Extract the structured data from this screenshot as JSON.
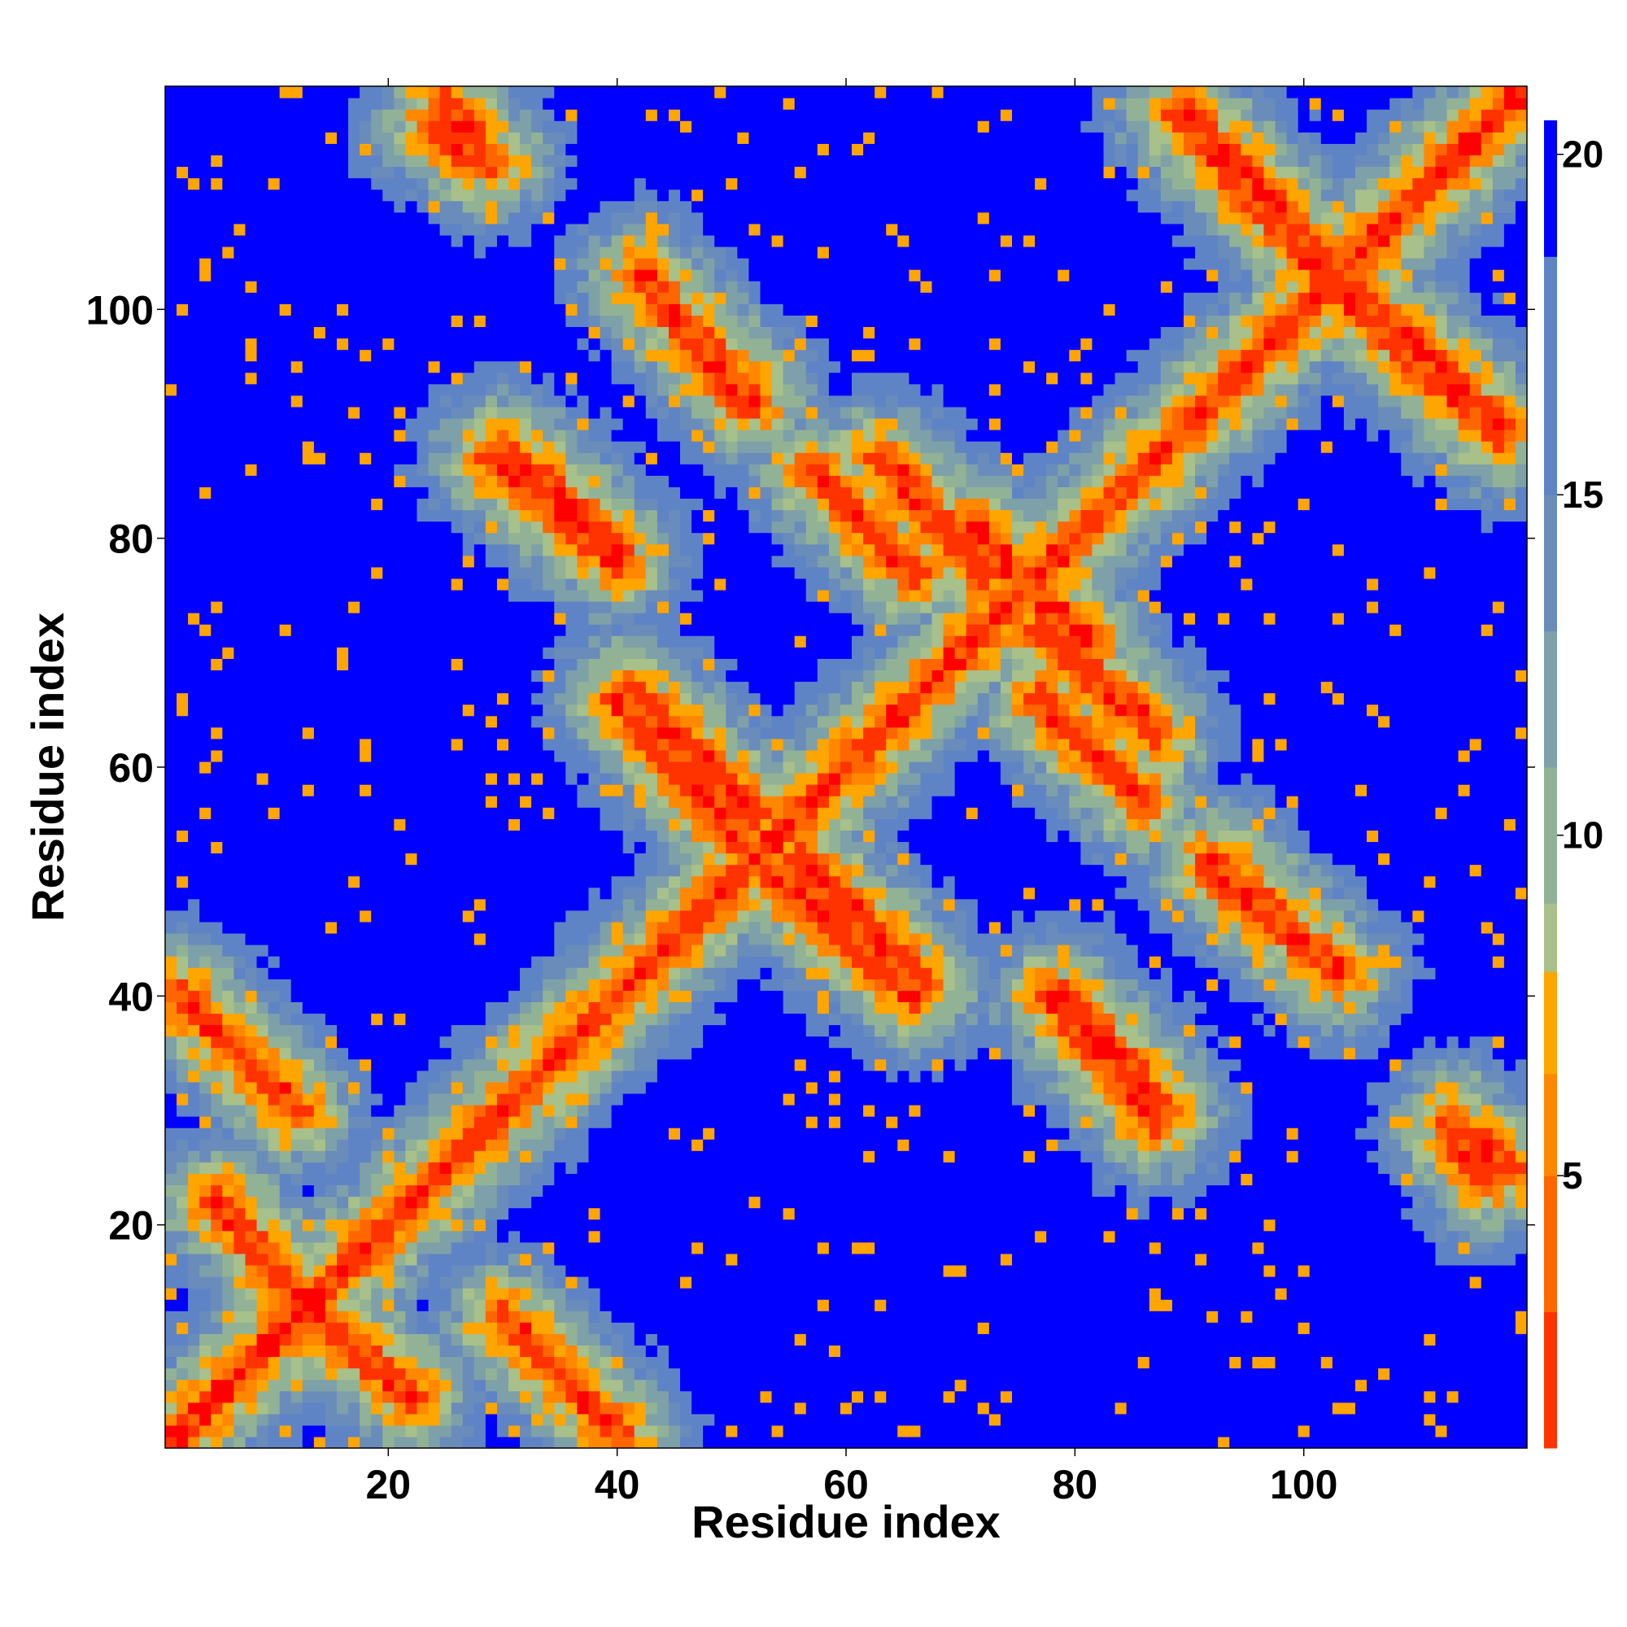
{
  "chart_data": {
    "type": "heatmap",
    "title": "",
    "xlabel": "Residue index",
    "ylabel": "Residue index",
    "n_residues": 119,
    "xlim": [
      1,
      119
    ],
    "ylim": [
      1,
      119
    ],
    "x_ticks": [
      20,
      40,
      60,
      80,
      100
    ],
    "y_ticks": [
      20,
      40,
      60,
      80,
      100
    ],
    "colorbar": {
      "ticks": [
        5,
        10,
        15,
        20
      ],
      "range": [
        1,
        21
      ],
      "colors": [
        "#ff0000",
        "#ff3300",
        "#ff6600",
        "#ff8800",
        "#ffa500",
        "#a8c08a",
        "#92b296",
        "#7ea0a8",
        "#6a8cbb",
        "#5f84c5",
        "#0000ff"
      ],
      "stops": [
        1,
        3,
        5,
        6.5,
        8,
        9,
        11,
        13,
        15,
        18.5,
        20.5
      ]
    },
    "diagonal_band_width": 2,
    "contact_segments": [
      {
        "x": [
          2,
          12
        ],
        "y": [
          40,
          30
        ]
      },
      {
        "x": [
          5,
          12
        ],
        "y": [
          22,
          14
        ]
      },
      {
        "x": [
          14,
          22
        ],
        "y": [
          12,
          5
        ]
      },
      {
        "x": [
          31,
          40
        ],
        "y": [
          11,
          2
        ]
      },
      {
        "x": [
          25,
          29
        ],
        "y": [
          118,
          113
        ]
      },
      {
        "x": [
          29,
          40
        ],
        "y": [
          87,
          78
        ]
      },
      {
        "x": [
          41,
          52
        ],
        "y": [
          67,
          56
        ]
      },
      {
        "x": [
          42,
          52
        ],
        "y": [
          103,
          92
        ]
      },
      {
        "x": [
          53,
          66
        ],
        "y": [
          51,
          40
        ]
      },
      {
        "x": [
          57,
          66
        ],
        "y": [
          86,
          77
        ]
      },
      {
        "x": [
          71,
          80
        ],
        "y": [
          81,
          72
        ]
      },
      {
        "x": [
          77,
          87
        ],
        "y": [
          72,
          63
        ]
      },
      {
        "x": [
          79,
          88
        ],
        "y": [
          40,
          30
        ]
      },
      {
        "x": [
          90,
          102
        ],
        "y": [
          117,
          104
        ]
      },
      {
        "x": [
          92,
          103
        ],
        "y": [
          51,
          42
        ]
      },
      {
        "x": [
          103,
          117
        ],
        "y": [
          102,
          89
        ]
      },
      {
        "x": [
          113,
          116
        ],
        "y": [
          28,
          24
        ]
      }
    ]
  }
}
